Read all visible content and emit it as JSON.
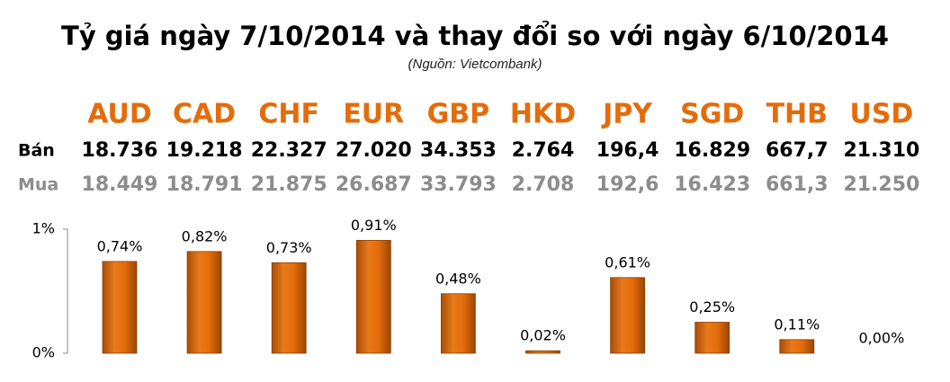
{
  "chart_data": {
    "type": "bar",
    "title": "Tỷ giá ngày 7/10/2014 và thay đổi so với ngày 6/10/2014",
    "subtitle": "(Nguồn: Vietcombank)",
    "categories": [
      "AUD",
      "CAD",
      "CHF",
      "EUR",
      "GBP",
      "HKD",
      "JPY",
      "SGD",
      "THB",
      "USD"
    ],
    "values": [
      0.74,
      0.82,
      0.73,
      0.91,
      0.48,
      0.02,
      0.61,
      0.25,
      0.11,
      0.0
    ],
    "value_labels": [
      "0,74%",
      "0,82%",
      "0,73%",
      "0,91%",
      "0,48%",
      "0,02%",
      "0,61%",
      "0,25%",
      "0,11%",
      "0,00%"
    ],
    "color": "#e46c0a",
    "ylim": [
      0,
      1
    ],
    "yticks": [
      {
        "value": 0,
        "label": "0%"
      },
      {
        "value": 1,
        "label": "1%"
      }
    ],
    "grid": false
  },
  "table": {
    "rows": [
      {
        "label": "Bán",
        "cells": [
          "18.736",
          "19.218",
          "22.327",
          "27.020",
          "34.353",
          "2.764",
          "196,4",
          "16.829",
          "667,7",
          "21.310"
        ]
      },
      {
        "label": "Mua",
        "cells": [
          "18.449",
          "18.791",
          "21.875",
          "26.687",
          "33.793",
          "2.708",
          "192,6",
          "16.423",
          "661,3",
          "21.250"
        ]
      }
    ]
  }
}
